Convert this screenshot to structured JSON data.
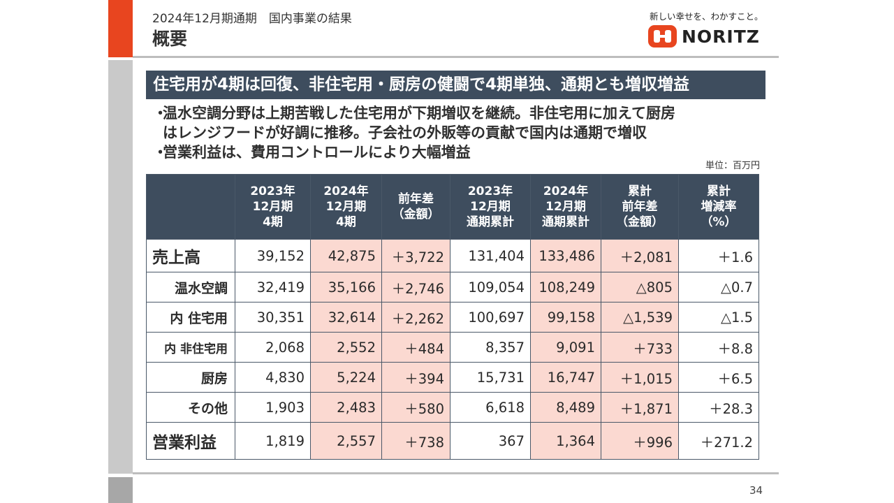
{
  "header": {
    "period": "2024年12月期通期　国内事業の結果",
    "title": "概要",
    "tagline": "新しい幸せを、わかすこと。",
    "brand": "NORITZ"
  },
  "headline": "住宅用が4期は回復、非住宅用・厨房の健闘で4期単独、通期とも増収増益",
  "bullets": [
    "温水空調分野は上期苦戦した住宅用が下期増収を継続。非住宅用に加えて厨房",
    "はレンジフードが好調に推移。子会社の外販等の貢献で国内は通期で増収",
    "営業利益は、費用コントロールにより大幅増益"
  ],
  "unit": "単位：百万円",
  "table": {
    "columns": [
      "",
      "2023年\n12月期\n4期",
      "2024年\n12月期\n4期",
      "前年差\n（金額）",
      "2023年\n12月期\n通期累計",
      "2024年\n12月期\n通期累計",
      "累計\n前年差\n（金額）",
      "累計\n増減率\n（%）"
    ],
    "rows": [
      {
        "label": "売上高",
        "cells": [
          "39,152",
          "42,875",
          "＋3,722",
          "131,404",
          "133,486",
          "＋2,081",
          "＋1.6"
        ]
      },
      {
        "label": "温水空調",
        "cells": [
          "32,419",
          "35,166",
          "＋2,746",
          "109,054",
          "108,249",
          "△805",
          "△0.7"
        ]
      },
      {
        "label": "内 住宅用",
        "cells": [
          "30,351",
          "32,614",
          "＋2,262",
          "100,697",
          "99,158",
          "△1,539",
          "△1.5"
        ]
      },
      {
        "label": "内 非住宅用",
        "cells": [
          "2,068",
          "2,552",
          "＋484",
          "8,357",
          "9,091",
          "＋733",
          "＋8.8"
        ]
      },
      {
        "label": "厨房",
        "cells": [
          "4,830",
          "5,224",
          "＋394",
          "15,731",
          "16,747",
          "＋1,015",
          "＋6.5"
        ]
      },
      {
        "label": "その他",
        "cells": [
          "1,903",
          "2,483",
          "＋580",
          "6,618",
          "8,489",
          "＋1,871",
          "＋28.3"
        ]
      },
      {
        "label": "営業利益",
        "cells": [
          "1,819",
          "2,557",
          "＋738",
          "367",
          "1,364",
          "＋996",
          "＋271.2"
        ]
      }
    ],
    "highlight_color": "#fbd9d1",
    "header_color": "#3e4d5e"
  },
  "page_number": "34",
  "colors": {
    "accent": "#e8451f",
    "navy": "#3e4d5e"
  }
}
